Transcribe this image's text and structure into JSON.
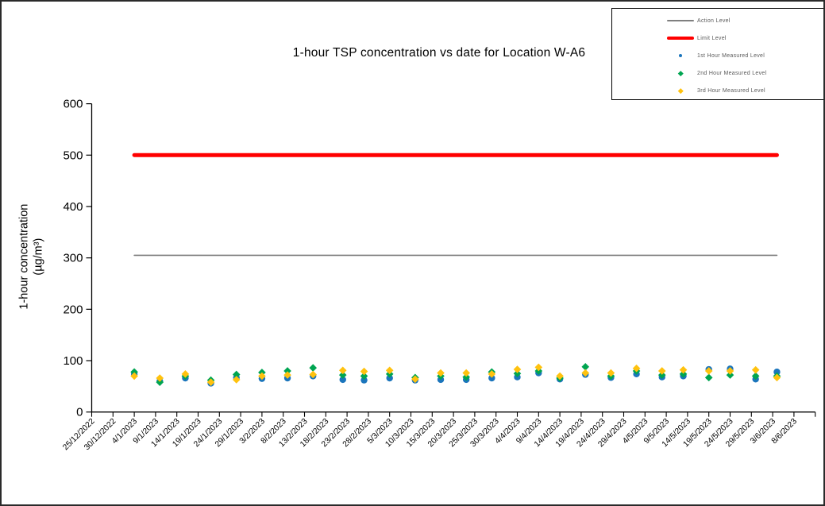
{
  "figure": {
    "y_axis": {
      "title_lines": [
        "1-hour concentration",
        "(µg/m³)"
      ],
      "tick_values": [
        0,
        100,
        200,
        300,
        400,
        500,
        600
      ]
    },
    "colors": {
      "axis": "#000000",
      "action_level": "#7F7F7F",
      "limit_level": "#FF0000",
      "hour1": "#1B75BC",
      "hour2": "#00A551",
      "hour3": "#FFC20E",
      "legend_text": "#595959"
    }
  },
  "chart_data": {
    "type": "scatter",
    "title": "1-hour TSP concentration vs date for Location  W-A6",
    "xlabel": "",
    "ylabel": "1-hour concentration (µg/m³)",
    "ylim": [
      0,
      600
    ],
    "grid": false,
    "legend_position": "top-right-box",
    "x_tick_labels": [
      "25/12/2022",
      "30/12/2022",
      "4/1/2023",
      "9/1/2023",
      "14/1/2023",
      "19/1/2023",
      "24/1/2023",
      "29/1/2023",
      "3/2/2023",
      "8/2/2023",
      "13/2/2023",
      "18/2/2023",
      "23/2/2023",
      "28/2/2023",
      "5/3/2023",
      "10/3/2023",
      "15/3/2023",
      "20/3/2023",
      "25/3/2023",
      "30/3/2023",
      "4/4/2023",
      "9/4/2023",
      "14/4/2023",
      "19/4/2023",
      "24/4/2023",
      "29/4/2023",
      "4/5/2023",
      "9/5/2023",
      "14/5/2023",
      "19/5/2023",
      "24/5/2023",
      "29/5/2023",
      "3/6/2023",
      "8/6/2023"
    ],
    "reference_lines": [
      {
        "name": "Action Level",
        "value": 305,
        "color": "#7F7F7F",
        "stroke_width": 1.6
      },
      {
        "name": "Limit Level",
        "value": 500,
        "color": "#FF0000",
        "stroke_width": 5
      }
    ],
    "dates": [
      "4/1/2023",
      "10/1/2023",
      "16/1/2023",
      "22/1/2023",
      "28/1/2023",
      "3/2/2023",
      "9/2/2023",
      "15/2/2023",
      "22/2/2023",
      "27/2/2023",
      "5/3/2023",
      "11/3/2023",
      "17/3/2023",
      "23/3/2023",
      "29/3/2023",
      "4/4/2023",
      "9/4/2023",
      "14/4/2023",
      "20/4/2023",
      "26/4/2023",
      "2/5/2023",
      "8/5/2023",
      "13/5/2023",
      "19/5/2023",
      "24/5/2023",
      "30/5/2023",
      "4/6/2023"
    ],
    "series": [
      {
        "name": "1st Hour Measured Level",
        "marker": "circle",
        "color": "#1B75BC",
        "values": [
          74,
          60,
          66,
          56,
          67,
          65,
          66,
          70,
          63,
          62,
          66,
          62,
          63,
          63,
          66,
          68,
          76,
          64,
          73,
          67,
          74,
          68,
          70,
          83,
          84,
          64,
          78
        ]
      },
      {
        "name": "2nd Hour Measured Level",
        "marker": "diamond",
        "color": "#00A551",
        "values": [
          78,
          58,
          70,
          62,
          73,
          77,
          80,
          86,
          72,
          70,
          74,
          67,
          70,
          68,
          78,
          75,
          80,
          66,
          88,
          70,
          80,
          72,
          74,
          67,
          72,
          70,
          70
        ]
      },
      {
        "name": "3rd Hour Measured Level",
        "marker": "diamond",
        "color": "#FFC20E",
        "values": [
          70,
          66,
          74,
          58,
          63,
          70,
          72,
          73,
          81,
          79,
          81,
          64,
          76,
          76,
          74,
          83,
          87,
          70,
          76,
          76,
          85,
          80,
          82,
          80,
          80,
          82,
          67
        ]
      }
    ]
  }
}
